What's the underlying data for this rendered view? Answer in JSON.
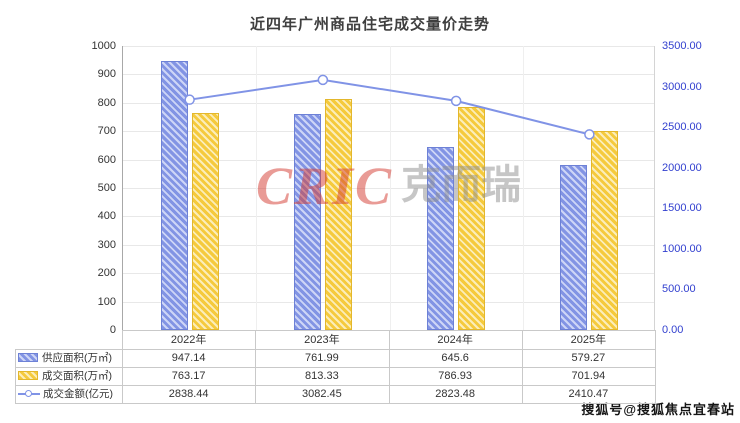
{
  "title": "近四年广州商品住宅成交量价走势",
  "watermark": {
    "en": "CRIC",
    "cn": "克而瑞"
  },
  "footer_watermark": "搜狐号@搜狐焦点宜春站",
  "chart_data": {
    "type": "combo-bar-line",
    "title": "近四年广州商品住宅成交量价走势",
    "categories": [
      "2022年",
      "2023年",
      "2024年",
      "2025年"
    ],
    "series": [
      {
        "name": "供应面积(万㎡)",
        "type": "bar",
        "axis": "left",
        "color": "#8294e4",
        "color_light": "#cdd5f6",
        "color_border": "#6d81d6",
        "values": [
          947.14,
          761.99,
          645.6,
          579.27
        ],
        "display": [
          "947.14",
          "761.99",
          "645.6",
          "579.27"
        ]
      },
      {
        "name": "成交面积(万㎡)",
        "type": "bar",
        "axis": "left",
        "color": "#f5ca3d",
        "color_light": "#fbedb9",
        "color_border": "#e3b72c",
        "values": [
          763.17,
          813.33,
          786.93,
          701.94
        ],
        "display": [
          "763.17",
          "813.33",
          "786.93",
          "701.94"
        ]
      },
      {
        "name": "成交金额(亿元)",
        "type": "line",
        "axis": "right",
        "color": "#8093e6",
        "values": [
          2838.44,
          3082.45,
          2823.48,
          2410.47
        ],
        "display": [
          "2838.44",
          "3082.45",
          "2823.48",
          "2410.47"
        ]
      }
    ],
    "left_axis": {
      "min": 0,
      "max": 1000,
      "ticks": [
        "0",
        "100",
        "200",
        "300",
        "400",
        "500",
        "600",
        "700",
        "800",
        "900",
        "1000"
      ],
      "color": "#333333"
    },
    "right_axis": {
      "min": 0,
      "max": 3500,
      "ticks": [
        "0.00",
        "500.00",
        "1000.00",
        "1500.00",
        "2000.00",
        "2500.00",
        "3000.00",
        "3500.00"
      ],
      "color": "#3240cf"
    },
    "grid": true,
    "legend_position": "table-left"
  }
}
